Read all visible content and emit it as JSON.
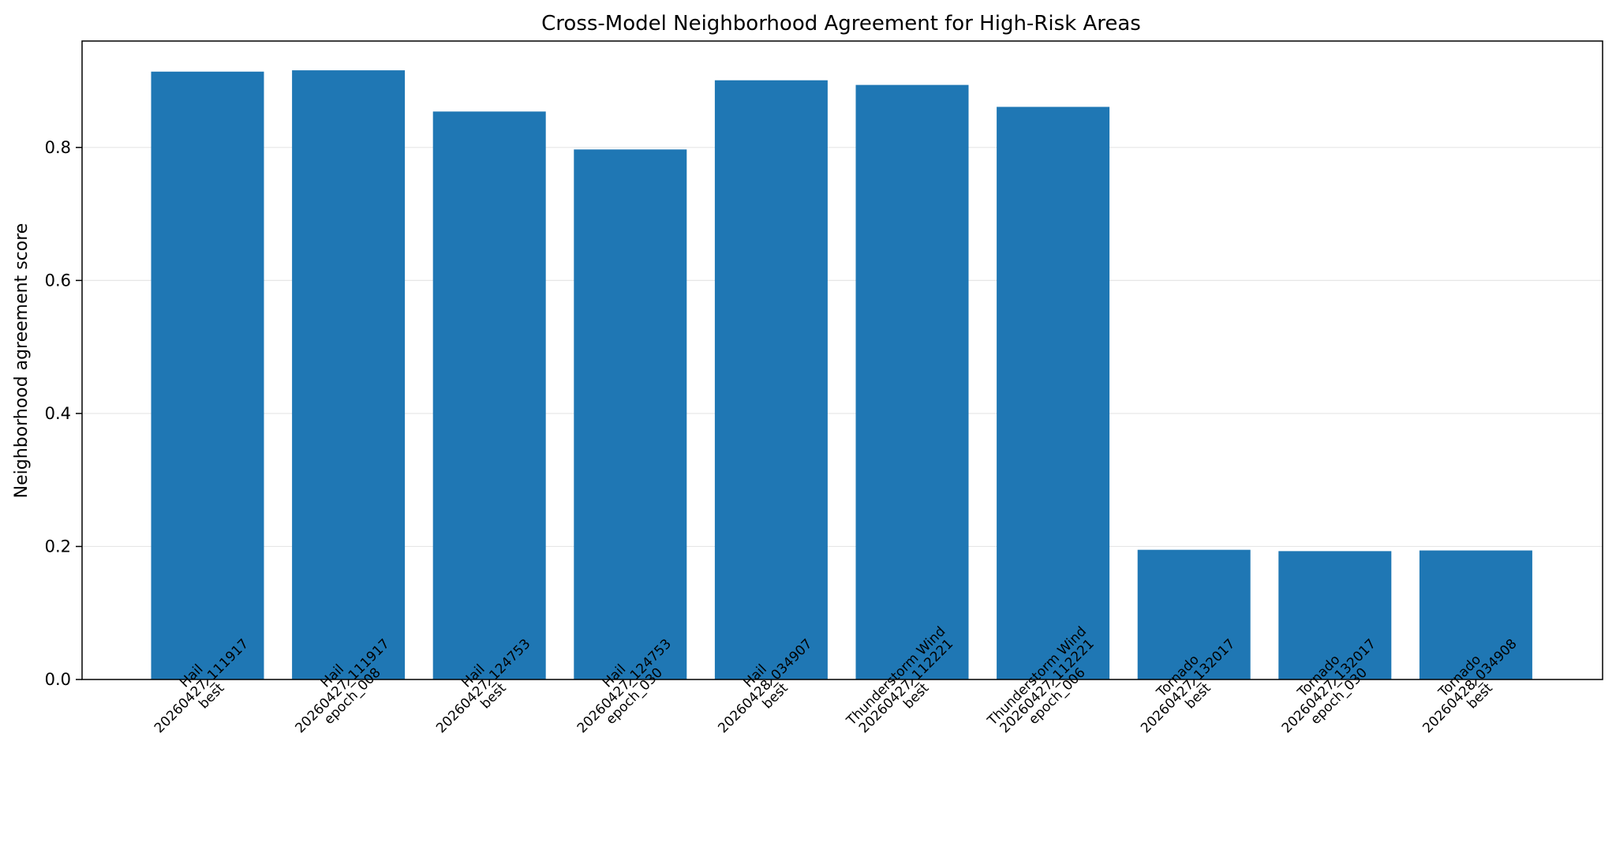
{
  "chart_data": {
    "type": "bar",
    "title": "Cross-Model Neighborhood Agreement for High-Risk Areas",
    "xlabel": "",
    "ylabel": "Neighborhood agreement score",
    "ylim": [
      0,
      0.96
    ],
    "yticks": [
      0.0,
      0.2,
      0.4,
      0.6,
      0.8
    ],
    "ytick_labels": [
      "0.0",
      "0.2",
      "0.4",
      "0.6",
      "0.8"
    ],
    "grid": "horizontal",
    "bar_color": "#1f77b4",
    "categories": [
      [
        "Hail",
        "20260427_111917",
        "best"
      ],
      [
        "Hail",
        "20260427_111917",
        "epoch_008"
      ],
      [
        "Hail",
        "20260427_124753",
        "best"
      ],
      [
        "Hail",
        "20260427_124753",
        "epoch_030"
      ],
      [
        "Hail",
        "20260428_034907",
        "best"
      ],
      [
        "Thunderstorm Wind",
        "20260427_112221",
        "best"
      ],
      [
        "Thunderstorm Wind",
        "20260427_112221",
        "epoch_006"
      ],
      [
        "Tornado",
        "20260427_132017",
        "best"
      ],
      [
        "Tornado",
        "20260427_132017",
        "epoch_030"
      ],
      [
        "Tornado",
        "20260428_034908",
        "best"
      ]
    ],
    "values": [
      0.914,
      0.916,
      0.854,
      0.797,
      0.901,
      0.894,
      0.861,
      0.195,
      0.193,
      0.194
    ]
  }
}
